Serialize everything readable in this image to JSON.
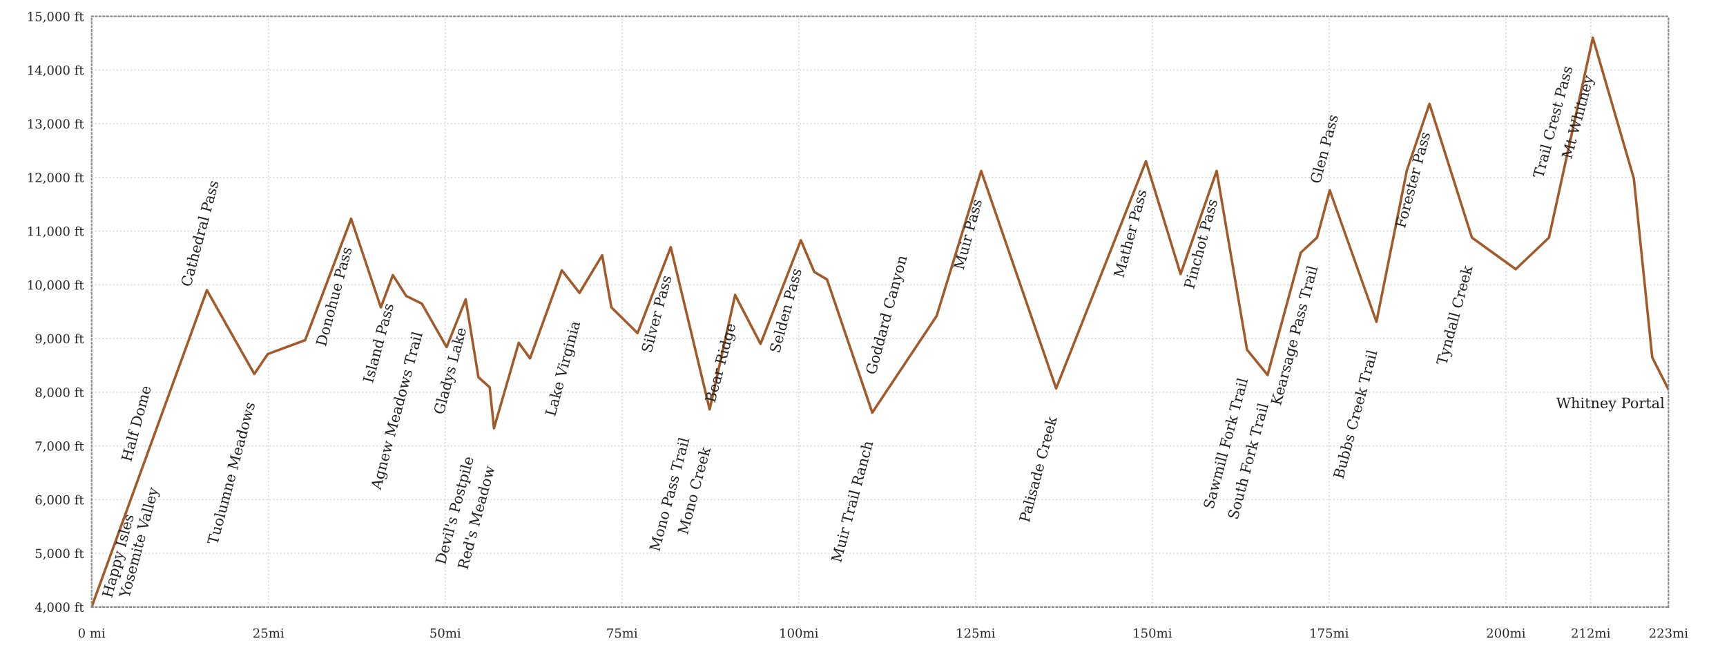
{
  "chart_data": {
    "type": "line",
    "x": [
      0,
      16.3,
      23.0,
      24.9,
      30.2,
      36.7,
      40.9,
      42.6,
      44.5,
      46.7,
      50.2,
      52.9,
      54.7,
      56.3,
      56.9,
      60.4,
      62.0,
      66.5,
      69.0,
      72.2,
      73.5,
      77.2,
      81.9,
      87.4,
      91.0,
      94.6,
      100.3,
      102.2,
      104.0,
      110.4,
      119.5,
      125.8,
      136.4,
      149.1,
      154.0,
      159.1,
      163.4,
      166.3,
      171.0,
      173.3,
      175.1,
      181.7,
      186.0,
      189.2,
      195.2,
      201.4,
      206.1,
      212.3,
      218.1,
      220.7,
      223
    ],
    "series": [
      {
        "color": "#a35a2a",
        "values": [
          4000,
          9900,
          8340,
          8710,
          8970,
          11230,
          9580,
          10180,
          9790,
          9650,
          8840,
          9730,
          8280,
          8090,
          7330,
          8920,
          8630,
          10270,
          9850,
          10550,
          9580,
          9100,
          10700,
          7680,
          9810,
          8900,
          10830,
          10240,
          10100,
          7620,
          9420,
          12120,
          8070,
          12300,
          10200,
          12120,
          8790,
          8320,
          10600,
          10880,
          11760,
          9310,
          12130,
          13370,
          10880,
          10290,
          10880,
          14600,
          11980,
          8650,
          8050
        ]
      }
    ],
    "xlim": [
      0,
      223
    ],
    "xticks": [
      {
        "value": 0,
        "label": "0 mi"
      },
      {
        "value": 25,
        "label": "25mi"
      },
      {
        "value": 50,
        "label": "50mi"
      },
      {
        "value": 75,
        "label": "75mi"
      },
      {
        "value": 100,
        "label": "100mi"
      },
      {
        "value": 125,
        "label": "125mi"
      },
      {
        "value": 150,
        "label": "150mi"
      },
      {
        "value": 175,
        "label": "175mi"
      },
      {
        "value": 200,
        "label": "200mi"
      },
      {
        "value": 212,
        "label": "212mi"
      },
      {
        "value": 223,
        "label": "223mi"
      }
    ],
    "ylim": [
      4000,
      15000
    ],
    "yticks": [
      {
        "value": 4000,
        "label": "4,000 ft"
      },
      {
        "value": 5000,
        "label": "5,000 ft"
      },
      {
        "value": 6000,
        "label": "6,000 ft"
      },
      {
        "value": 7000,
        "label": "7,000 ft"
      },
      {
        "value": 8000,
        "label": "8,000 ft"
      },
      {
        "value": 9000,
        "label": "9,000 ft"
      },
      {
        "value": 10000,
        "label": "10,000 ft"
      },
      {
        "value": 11000,
        "label": "11,000 ft"
      },
      {
        "value": 12000,
        "label": "12,000 ft"
      },
      {
        "value": 13000,
        "label": "13,000 ft"
      },
      {
        "value": 14000,
        "label": "14,000 ft"
      },
      {
        "value": 15000,
        "label": "15,000 ft"
      }
    ],
    "grid": true,
    "marker": "none",
    "line_style": "solid",
    "annotations": [
      {
        "text": "Happy Isles",
        "x": 0,
        "y": 4000
      },
      {
        "text": "Yosemite Valley",
        "x": 0,
        "y": 4000
      },
      {
        "text": "Half Dome",
        "x": 7.0,
        "y": 6534
      },
      {
        "text": "Cathedral Pass",
        "x": 16.0,
        "y": 9791
      },
      {
        "text": "Tuolumne Meadows",
        "x": 23.0,
        "y": 8340
      },
      {
        "text": "Donohue Pass",
        "x": 36.7,
        "y": 11230
      },
      {
        "text": "Island Pass",
        "x": 42.6,
        "y": 10180
      },
      {
        "text": "Agnew Meadows Trail",
        "x": 46.7,
        "y": 9650
      },
      {
        "text": "Gladys Lake",
        "x": 52.9,
        "y": 9730
      },
      {
        "text": "Devil's Postpile",
        "x": 56.9,
        "y": 7330
      },
      {
        "text": "Red's Meadow",
        "x": 56.9,
        "y": 7330
      },
      {
        "text": "Lake Virginia",
        "x": 69.0,
        "y": 9850
      },
      {
        "text": "Silver Pass",
        "x": 81.9,
        "y": 10700
      },
      {
        "text": "Mono Pass Trail",
        "x": 87.4,
        "y": 7680
      },
      {
        "text": "Mono Creek",
        "x": 87.4,
        "y": 7680
      },
      {
        "text": "Bear Ridge",
        "x": 91.0,
        "y": 9810
      },
      {
        "text": "Selden Pass",
        "x": 100.3,
        "y": 10830
      },
      {
        "text": "Muir Trail Ranch",
        "x": 110.4,
        "y": 7620
      },
      {
        "text": "Goddard Canyon",
        "x": 113.1,
        "y": 8154
      },
      {
        "text": "Muir Pass",
        "x": 125.8,
        "y": 12120
      },
      {
        "text": "Palisade Creek",
        "x": 136.4,
        "y": 8070
      },
      {
        "text": "Mather Pass",
        "x": 149.1,
        "y": 12300
      },
      {
        "text": "Pinchot Pass",
        "x": 159.1,
        "y": 12120
      },
      {
        "text": "Sawmill Fork Trail",
        "x": 163.4,
        "y": 8790
      },
      {
        "text": "South Fork Trail",
        "x": 166.3,
        "y": 8320
      },
      {
        "text": "Kearsage Pass Trail",
        "x": 173.3,
        "y": 10880
      },
      {
        "text": "Bubbs Creek Trail",
        "x": 181.7,
        "y": 9310
      },
      {
        "text": "Glen Pass",
        "x": 175.0,
        "y": 11711
      },
      {
        "text": "Forester Pass",
        "x": 189.2,
        "y": 13370
      },
      {
        "text": "Tyndall Creek",
        "x": 195.2,
        "y": 10880
      },
      {
        "text": "Trail Crest Pass",
        "x": 212.3,
        "y": 14600
      },
      {
        "text": "Mt Whitney",
        "x": 212.3,
        "y": 14600
      },
      {
        "text": "Whitney Portal",
        "x": 223,
        "y": 8050
      }
    ]
  }
}
